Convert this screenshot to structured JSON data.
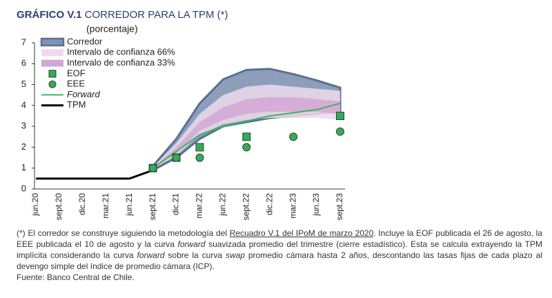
{
  "chart_data": {
    "type": "line",
    "title_prefix": "GRÁFICO V.1",
    "title": "CORREDOR PARA LA TPM (*)",
    "subtitle": "(porcentaje)",
    "categories": [
      "jun.20",
      "sept.20",
      "dic.20",
      "mar.21",
      "jun.21",
      "sept.21",
      "dic.21",
      "mar.22",
      "jun.22",
      "sept.22",
      "dic.22",
      "mar.23",
      "jun.23",
      "sept.23"
    ],
    "ylim": [
      0,
      7
    ],
    "yticks": [
      0,
      1,
      2,
      3,
      4,
      5,
      6,
      7
    ],
    "series": [
      {
        "name": "Corredor",
        "style": "band",
        "color": "#7f93b3",
        "edge": "#5b6f93",
        "upper": [
          null,
          null,
          null,
          null,
          null,
          1.1,
          2.4,
          4.1,
          5.25,
          5.7,
          5.75,
          5.5,
          5.2,
          4.85
        ],
        "lower": [
          null,
          null,
          null,
          null,
          null,
          0.9,
          1.5,
          2.4,
          3.0,
          3.2,
          3.4,
          3.5,
          3.6,
          3.7
        ]
      },
      {
        "name": "Intervalo de confianza 66%",
        "style": "band",
        "color": "#eddaec",
        "upper": [
          null,
          null,
          null,
          null,
          null,
          1.05,
          2.2,
          3.6,
          4.5,
          4.9,
          5.0,
          4.9,
          4.8,
          4.7
        ],
        "lower": [
          null,
          null,
          null,
          null,
          null,
          0.95,
          1.6,
          2.6,
          3.1,
          3.3,
          3.4,
          3.4,
          3.4,
          3.3
        ]
      },
      {
        "name": "Intervalo de confianza 33%",
        "style": "band",
        "color": "#d3a7d3",
        "upper": [
          null,
          null,
          null,
          null,
          null,
          1.0,
          2.0,
          3.2,
          3.9,
          4.3,
          4.4,
          4.4,
          4.3,
          4.2
        ],
        "lower": [
          null,
          null,
          null,
          null,
          null,
          0.97,
          1.7,
          2.8,
          3.3,
          3.6,
          3.7,
          3.7,
          3.7,
          3.6
        ]
      },
      {
        "name": "EOF",
        "style": "square",
        "color": "#3aa85a",
        "values": [
          null,
          null,
          null,
          null,
          null,
          1.0,
          1.5,
          2.0,
          null,
          2.5,
          null,
          null,
          null,
          3.5
        ]
      },
      {
        "name": "EEE",
        "style": "circle",
        "color": "#3aa85a",
        "values": [
          null,
          null,
          null,
          null,
          null,
          1.0,
          1.5,
          1.5,
          null,
          2.0,
          null,
          2.5,
          null,
          2.75
        ]
      },
      {
        "name": "Forward",
        "style": "line",
        "italic": true,
        "color": "#3cb45a",
        "values": [
          null,
          null,
          null,
          null,
          null,
          1.0,
          1.8,
          2.6,
          3.0,
          3.25,
          3.5,
          3.65,
          3.8,
          4.1
        ]
      },
      {
        "name": "TPM",
        "style": "line",
        "color": "#000000",
        "values": [
          0.5,
          0.5,
          0.5,
          0.5,
          0.5,
          0.9,
          null,
          null,
          null,
          null,
          null,
          null,
          null,
          null
        ]
      }
    ],
    "note": [
      "(*) El corredor se construye siguiendo la metodología del ",
      "Recuadro V.1 del IPoM de marzo 2020",
      ". Incluye la EOF publicada el 26 de agosto, la EEE publicada el 10 de agosto y la curva ",
      "forward",
      " suavizada promedio del trimestre (cierre estadístico). Esta se calcula extrayendo la TPM implícita considerando la curva ",
      "forward",
      " sobre la curva ",
      "swap",
      " promedio cámara hasta 2 años, descontando las tasas fijas de cada plazo al devengo simple del índice de promedio cámara (ICP)."
    ],
    "source": "Fuente: Banco Central de Chile."
  }
}
